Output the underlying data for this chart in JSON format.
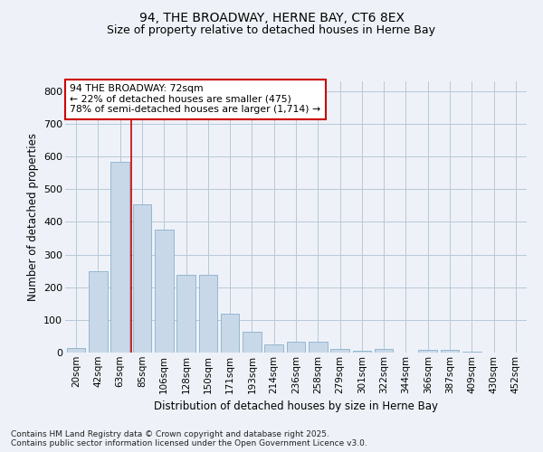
{
  "title_line1": "94, THE BROADWAY, HERNE BAY, CT6 8EX",
  "title_line2": "Size of property relative to detached houses in Herne Bay",
  "xlabel": "Distribution of detached houses by size in Herne Bay",
  "ylabel": "Number of detached properties",
  "categories": [
    "20sqm",
    "42sqm",
    "63sqm",
    "85sqm",
    "106sqm",
    "128sqm",
    "150sqm",
    "171sqm",
    "193sqm",
    "214sqm",
    "236sqm",
    "258sqm",
    "279sqm",
    "301sqm",
    "322sqm",
    "344sqm",
    "366sqm",
    "387sqm",
    "409sqm",
    "430sqm",
    "452sqm"
  ],
  "values": [
    15,
    248,
    585,
    455,
    375,
    237,
    237,
    120,
    63,
    25,
    33,
    33,
    10,
    5,
    10,
    0,
    8,
    8,
    2,
    1,
    1
  ],
  "bar_color": "#c8d8e8",
  "bar_edge_color": "#8ab0cc",
  "grid_color": "#b8c8d8",
  "background_color": "#eef2f8",
  "vline_color": "#cc0000",
  "vline_x": 2.5,
  "annotation_text": "94 THE BROADWAY: 72sqm\n← 22% of detached houses are smaller (475)\n78% of semi-detached houses are larger (1,714) →",
  "annotation_box_color": "#ffffff",
  "annotation_box_edge": "#cc0000",
  "footer_line1": "Contains HM Land Registry data © Crown copyright and database right 2025.",
  "footer_line2": "Contains public sector information licensed under the Open Government Licence v3.0.",
  "ylim": [
    0,
    830
  ],
  "yticks": [
    0,
    100,
    200,
    300,
    400,
    500,
    600,
    700,
    800
  ]
}
